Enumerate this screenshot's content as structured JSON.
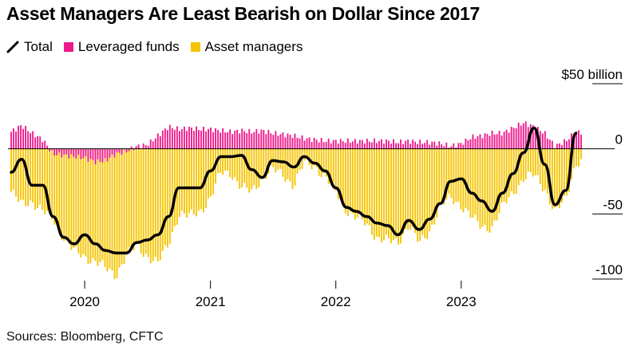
{
  "title": "Asset Managers Are Least Bearish on Dollar Since 2017",
  "legend": {
    "total": "Total",
    "leveraged": "Leveraged funds",
    "asset": "Asset managers"
  },
  "source": "Sources: Bloomberg, CFTC",
  "colors": {
    "asset": "#f5c400",
    "leveraged": "#ee1a8c",
    "total": "#000000"
  },
  "chart_data": {
    "type": "bar",
    "title": "Asset Managers Are Least Bearish on Dollar Since 2017",
    "y_unit_label": "$50 billion",
    "ylim": [
      -100,
      50
    ],
    "y_ticks": [
      {
        "value": 50,
        "label": "$50 billion"
      },
      {
        "value": 0,
        "label": "0"
      },
      {
        "value": -50,
        "label": "-50"
      },
      {
        "value": -100,
        "label": "-100"
      }
    ],
    "x_ticks": [
      "2020",
      "2021",
      "2022",
      "2023"
    ],
    "x_range": [
      "2019-06",
      "2023-12"
    ],
    "legend_position": "top-left",
    "grid": false,
    "series": [
      {
        "name": "Asset managers",
        "kind": "bar",
        "dates": [
          "2019-06-01",
          "2019-07-01",
          "2019-08-01",
          "2019-09-01",
          "2019-10-01",
          "2019-11-01",
          "2019-12-01",
          "2020-01-01",
          "2020-02-01",
          "2020-03-01",
          "2020-04-01",
          "2020-05-01",
          "2020-06-01",
          "2020-07-01",
          "2020-08-01",
          "2020-09-01",
          "2020-10-01",
          "2020-11-01",
          "2020-12-01",
          "2021-01-01",
          "2021-02-01",
          "2021-03-01",
          "2021-04-01",
          "2021-05-01",
          "2021-06-01",
          "2021-07-01",
          "2021-08-01",
          "2021-09-01",
          "2021-10-01",
          "2021-11-01",
          "2021-12-01",
          "2022-01-01",
          "2022-02-01",
          "2022-03-01",
          "2022-04-01",
          "2022-05-01",
          "2022-06-01",
          "2022-07-01",
          "2022-08-01",
          "2022-09-01",
          "2022-10-01",
          "2022-11-01",
          "2022-12-01",
          "2023-01-01",
          "2023-02-01",
          "2023-03-01",
          "2023-04-01",
          "2023-05-01",
          "2023-06-01",
          "2023-07-01",
          "2023-08-01",
          "2023-09-01",
          "2023-10-01",
          "2023-11-01",
          "2023-12-01"
        ],
        "values": [
          -33,
          -43,
          -40,
          -48,
          -54,
          -68,
          -79,
          -83,
          -86,
          -92,
          -97,
          -82,
          -75,
          -82,
          -88,
          -73,
          -50,
          -52,
          -48,
          -38,
          -18,
          -18,
          -30,
          -33,
          -22,
          -16,
          -20,
          -28,
          -11,
          -13,
          -22,
          -33,
          -47,
          -53,
          -58,
          -68,
          -71,
          -72,
          -58,
          -73,
          -63,
          -44,
          -38,
          -43,
          -53,
          -60,
          -60,
          -45,
          -33,
          -23,
          -20,
          -30,
          -49,
          -39,
          -10
        ]
      },
      {
        "name": "Leveraged funds",
        "kind": "bar",
        "dates": [
          "2019-06-01",
          "2019-07-01",
          "2019-08-01",
          "2019-09-01",
          "2019-10-01",
          "2019-11-01",
          "2019-12-01",
          "2020-01-01",
          "2020-02-01",
          "2020-03-01",
          "2020-04-01",
          "2020-05-01",
          "2020-06-01",
          "2020-07-01",
          "2020-08-01",
          "2020-09-01",
          "2020-10-01",
          "2020-11-01",
          "2020-12-01",
          "2021-01-01",
          "2021-02-01",
          "2021-03-01",
          "2021-04-01",
          "2021-05-01",
          "2021-06-01",
          "2021-07-01",
          "2021-08-01",
          "2021-09-01",
          "2021-10-01",
          "2021-11-01",
          "2021-12-01",
          "2022-01-01",
          "2022-02-01",
          "2022-03-01",
          "2022-04-01",
          "2022-05-01",
          "2022-06-01",
          "2022-07-01",
          "2022-08-01",
          "2022-09-01",
          "2022-10-01",
          "2022-11-01",
          "2022-12-01",
          "2023-01-01",
          "2023-02-01",
          "2023-03-01",
          "2023-04-01",
          "2023-05-01",
          "2023-06-01",
          "2023-07-01",
          "2023-08-01",
          "2023-09-01",
          "2023-10-01",
          "2023-11-01",
          "2023-12-01"
        ],
        "values": [
          13,
          18,
          12,
          7,
          -4,
          -5,
          -6,
          -7,
          -10,
          -9,
          -4,
          -2,
          2,
          3,
          10,
          17,
          15,
          16,
          15,
          15,
          14,
          13,
          14,
          13,
          14,
          12,
          11,
          10,
          8,
          7,
          6,
          6,
          6,
          6,
          6,
          6,
          6,
          5,
          6,
          5,
          5,
          4,
          2,
          4,
          9,
          10,
          12,
          12,
          16,
          20,
          17,
          12,
          2,
          6,
          13
        ]
      },
      {
        "name": "Total",
        "kind": "line",
        "dates": [
          "2019-06-01",
          "2019-07-01",
          "2019-08-01",
          "2019-09-01",
          "2019-10-01",
          "2019-11-01",
          "2019-12-01",
          "2020-01-01",
          "2020-02-01",
          "2020-03-01",
          "2020-04-01",
          "2020-05-01",
          "2020-06-01",
          "2020-07-01",
          "2020-08-01",
          "2020-09-01",
          "2020-10-01",
          "2020-11-01",
          "2020-12-01",
          "2021-01-01",
          "2021-02-01",
          "2021-03-01",
          "2021-04-01",
          "2021-05-01",
          "2021-06-01",
          "2021-07-01",
          "2021-08-01",
          "2021-09-01",
          "2021-10-01",
          "2021-11-01",
          "2021-12-01",
          "2022-01-01",
          "2022-02-01",
          "2022-03-01",
          "2022-04-01",
          "2022-05-01",
          "2022-06-01",
          "2022-07-01",
          "2022-08-01",
          "2022-09-01",
          "2022-10-01",
          "2022-11-01",
          "2022-12-01",
          "2023-01-01",
          "2023-02-01",
          "2023-03-01",
          "2023-04-01",
          "2023-05-01",
          "2023-06-01",
          "2023-07-01",
          "2023-08-01",
          "2023-09-01",
          "2023-10-01",
          "2023-11-01",
          "2023-12-01"
        ],
        "values": [
          -18,
          -8,
          -28,
          -28,
          -52,
          -68,
          -73,
          -66,
          -73,
          -78,
          -80,
          -80,
          -72,
          -70,
          -66,
          -52,
          -30,
          -30,
          -30,
          -17,
          -6,
          -6,
          -5,
          -16,
          -22,
          -9,
          -10,
          -14,
          -6,
          -11,
          -17,
          -30,
          -45,
          -48,
          -52,
          -57,
          -59,
          -66,
          -55,
          -62,
          -54,
          -42,
          -25,
          -23,
          -34,
          -40,
          -48,
          -34,
          -19,
          -3,
          16,
          -12,
          -43,
          -32,
          12
        ]
      }
    ]
  }
}
